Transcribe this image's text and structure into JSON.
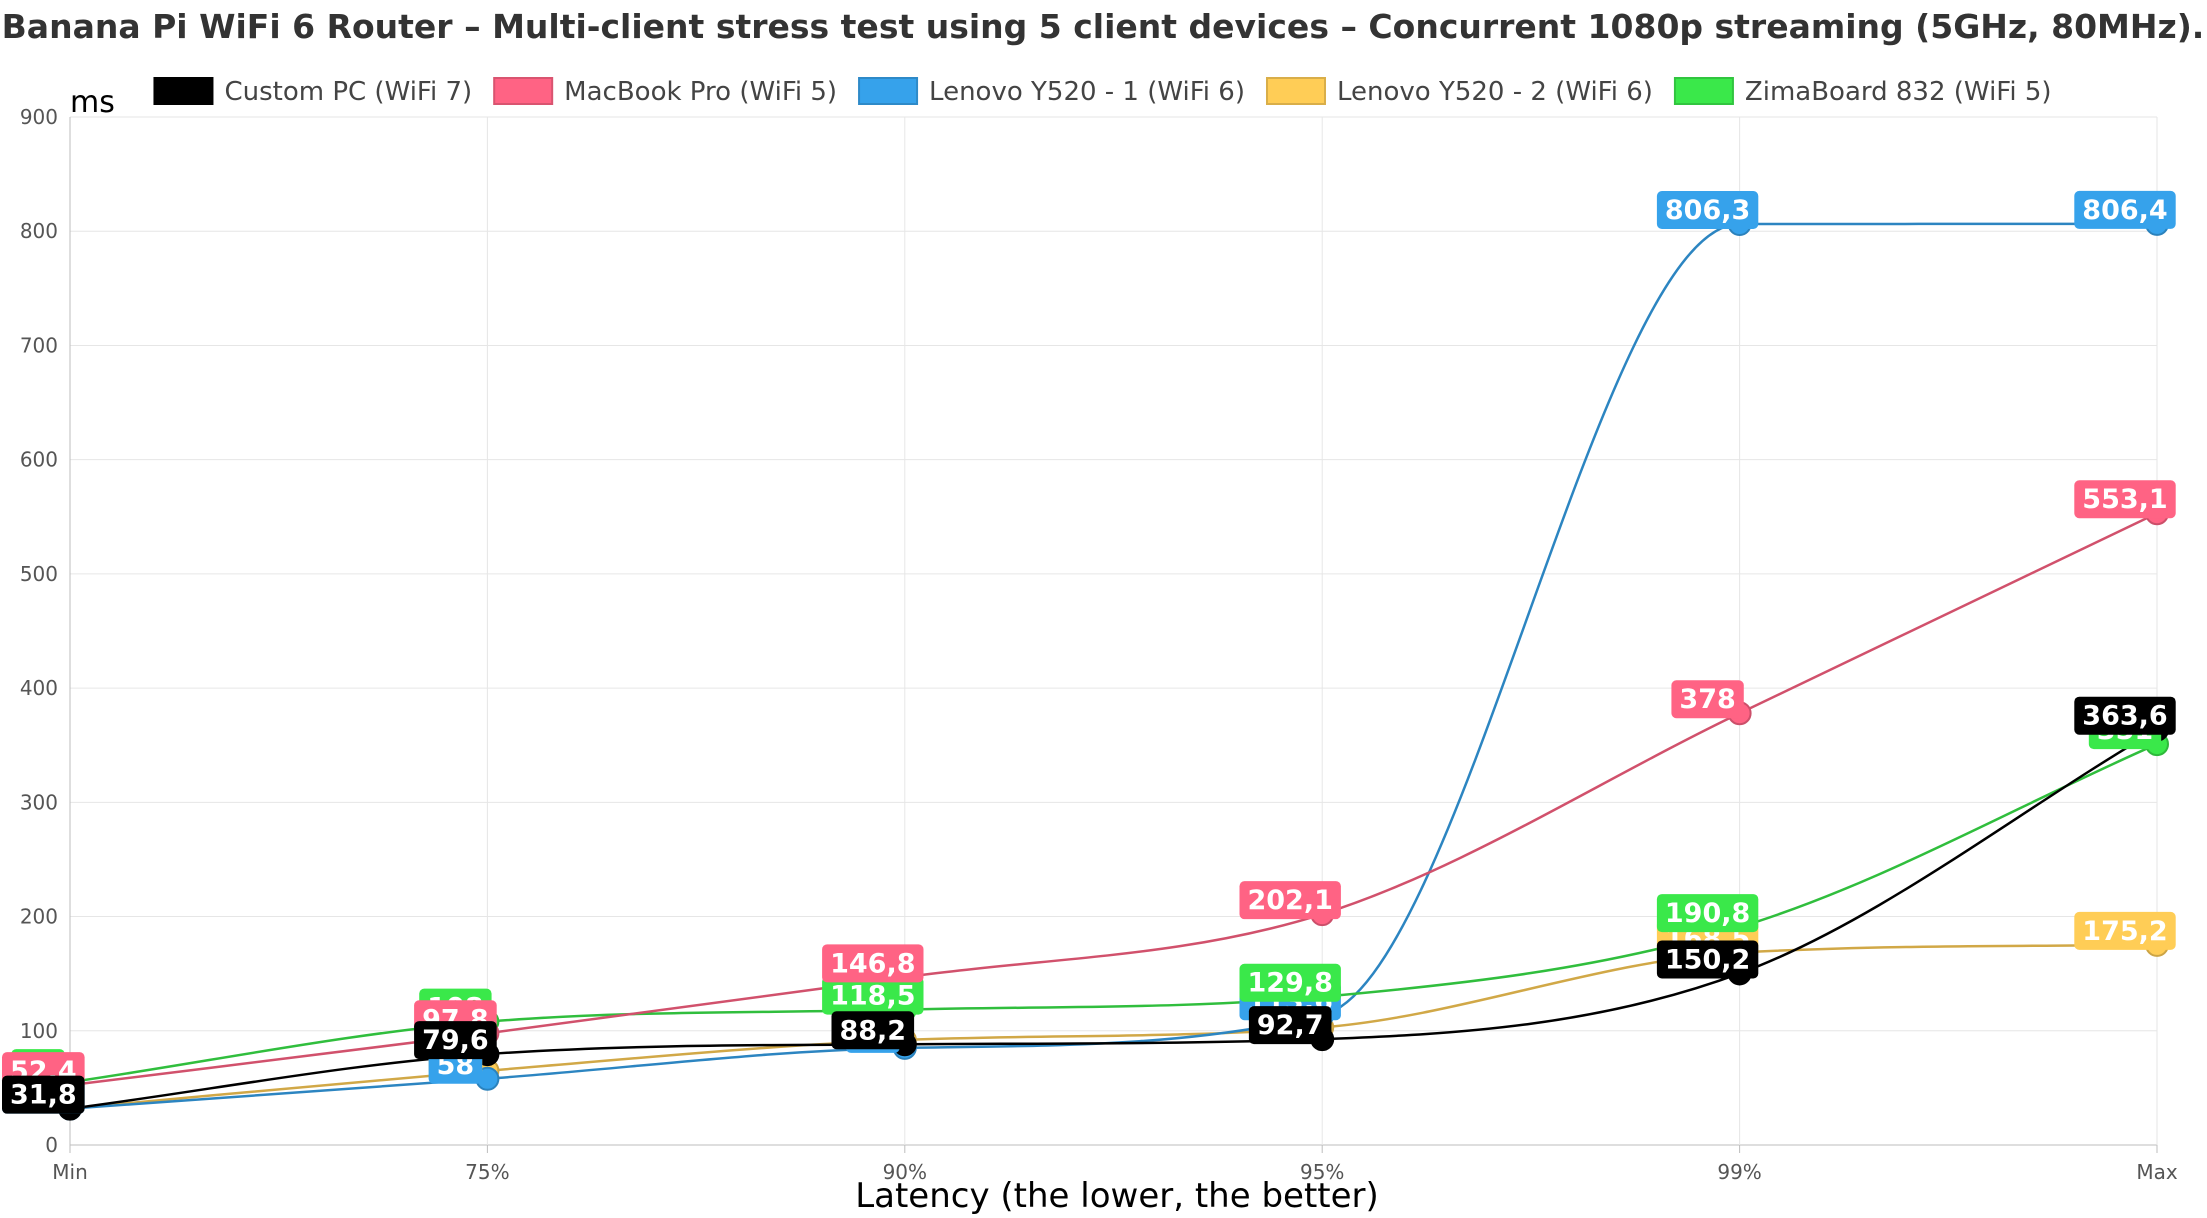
{
  "chart_data": {
    "type": "line",
    "title": "Banana Pi WiFi 6 Router – Multi-client stress test using 5 client devices – Concurrent 1080p streaming (5GHz, 80MHz).",
    "xlabel": "Latency (the lower, the better)",
    "ylabel": "ms",
    "categories": [
      "Min",
      "75%",
      "90%",
      "95%",
      "99%",
      "Max"
    ],
    "ylim": [
      0,
      900
    ],
    "yticks": [
      0,
      100,
      200,
      300,
      400,
      500,
      600,
      700,
      800,
      900
    ],
    "grid": true,
    "legend_position": "top",
    "series": [
      {
        "name": "Custom PC (WiFi 7)",
        "color": "#000000",
        "label_text_color": "#ffffff",
        "values": [
          31.8,
          79.6,
          88.2,
          92.7,
          150.2,
          363.6
        ],
        "labels": [
          "31,8",
          "79,6",
          "88,2",
          "92,7",
          "150,2",
          "363,6"
        ]
      },
      {
        "name": "MacBook Pro (WiFi 5)",
        "color": "#ff6384",
        "label_text_color": "#ffffff",
        "values": [
          52.4,
          97.8,
          146.8,
          202.1,
          378,
          553.1
        ],
        "labels": [
          "52,4",
          "97,8",
          "146,8",
          "202,1",
          "378",
          "553,1"
        ]
      },
      {
        "name": "Lenovo Y520 - 1 (WiFi 6)",
        "color": "#36a2eb",
        "label_text_color": "#ffffff",
        "values": [
          31.8,
          58,
          85,
          113.6,
          806.3,
          806.4
        ],
        "labels": [
          "31,8",
          "58",
          "85",
          "113,6",
          "806,3",
          "806,4"
        ]
      },
      {
        "name": "Lenovo Y520 - 2 (WiFi 6)",
        "color": "#ffcd56",
        "label_text_color": "#ffffff",
        "values": [
          32,
          65,
          92,
          103,
          168.5,
          175.2
        ],
        "labels": [
          "32",
          "65",
          "92",
          "103",
          "168,5",
          "175,2"
        ]
      },
      {
        "name": "ZimaBoard 832 (WiFi 5)",
        "color": "#3ae84a",
        "label_text_color": "#ffffff",
        "values": [
          55,
          108,
          118.5,
          129.8,
          190.8,
          351
        ],
        "labels": [
          "55",
          "108",
          "118,5",
          "129,8",
          "190,8",
          "351"
        ]
      }
    ]
  }
}
